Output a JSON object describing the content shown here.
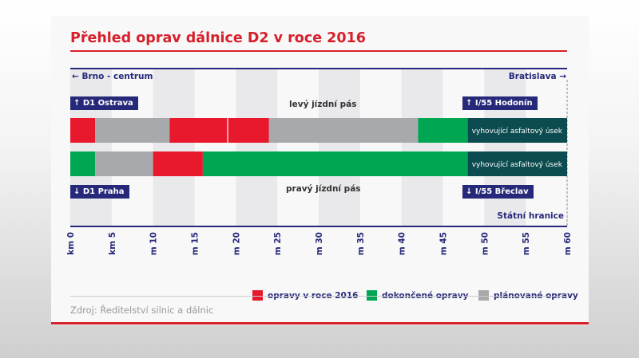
{
  "title": "Přehled oprav dálnice D2 v roce 2016",
  "direction_left": "Brno - centrum",
  "direction_right": "Bratislava",
  "exits": {
    "top_left": "D1 Ostrava",
    "top_right": "I/55 Hodonín",
    "bottom_left": "D1 Praha",
    "bottom_right": "I/55 Břeclav"
  },
  "border_label": "Státní hranice",
  "source": "Zdroj: Ředitelství silnic a dálnic",
  "colors": {
    "red": "#e8192c",
    "green": "#00a651",
    "gray": "#a7a9ac",
    "dark": "#0c4b4f",
    "navy": "#26297a",
    "title_red": "#d6202a"
  },
  "chart_data": {
    "type": "bar",
    "orientation": "horizontal-stacked-segments",
    "xlim": [
      0,
      60
    ],
    "x_ticks": [
      "km 0",
      "km 5",
      "km 10",
      "km 15",
      "km 20",
      "km 25",
      "km 30",
      "km 35",
      "km 40",
      "km 45",
      "km 50",
      "km 55",
      "km 60"
    ],
    "legend": [
      {
        "label": "opravy v roce 2016",
        "color": "#e8192c",
        "key": "red"
      },
      {
        "label": "dokončené opravy",
        "color": "#00a651",
        "key": "green"
      },
      {
        "label": "plánované opravy",
        "color": "#a7a9ac",
        "key": "gray"
      }
    ],
    "legend_position": "bottom-right",
    "lanes": [
      {
        "name": "levý jízdní pás",
        "segments": [
          {
            "from": 0,
            "to": 3,
            "kind": "red"
          },
          {
            "from": 3,
            "to": 12,
            "kind": "gray"
          },
          {
            "from": 12,
            "to": 19,
            "kind": "red"
          },
          {
            "from": 19,
            "to": 24,
            "kind": "red"
          },
          {
            "from": 24,
            "to": 42,
            "kind": "gray"
          },
          {
            "from": 42,
            "to": 48,
            "kind": "green"
          },
          {
            "from": 48,
            "to": 60,
            "kind": "dark",
            "label": "vyhovující asfaltový úsek"
          }
        ]
      },
      {
        "name": "pravý jízdní pás",
        "segments": [
          {
            "from": 0,
            "to": 3,
            "kind": "green"
          },
          {
            "from": 3,
            "to": 10,
            "kind": "gray"
          },
          {
            "from": 10,
            "to": 16,
            "kind": "red"
          },
          {
            "from": 16,
            "to": 48,
            "kind": "green"
          },
          {
            "from": 48,
            "to": 60,
            "kind": "dark",
            "label": "vyhovující asfaltový úsek"
          }
        ]
      }
    ]
  }
}
